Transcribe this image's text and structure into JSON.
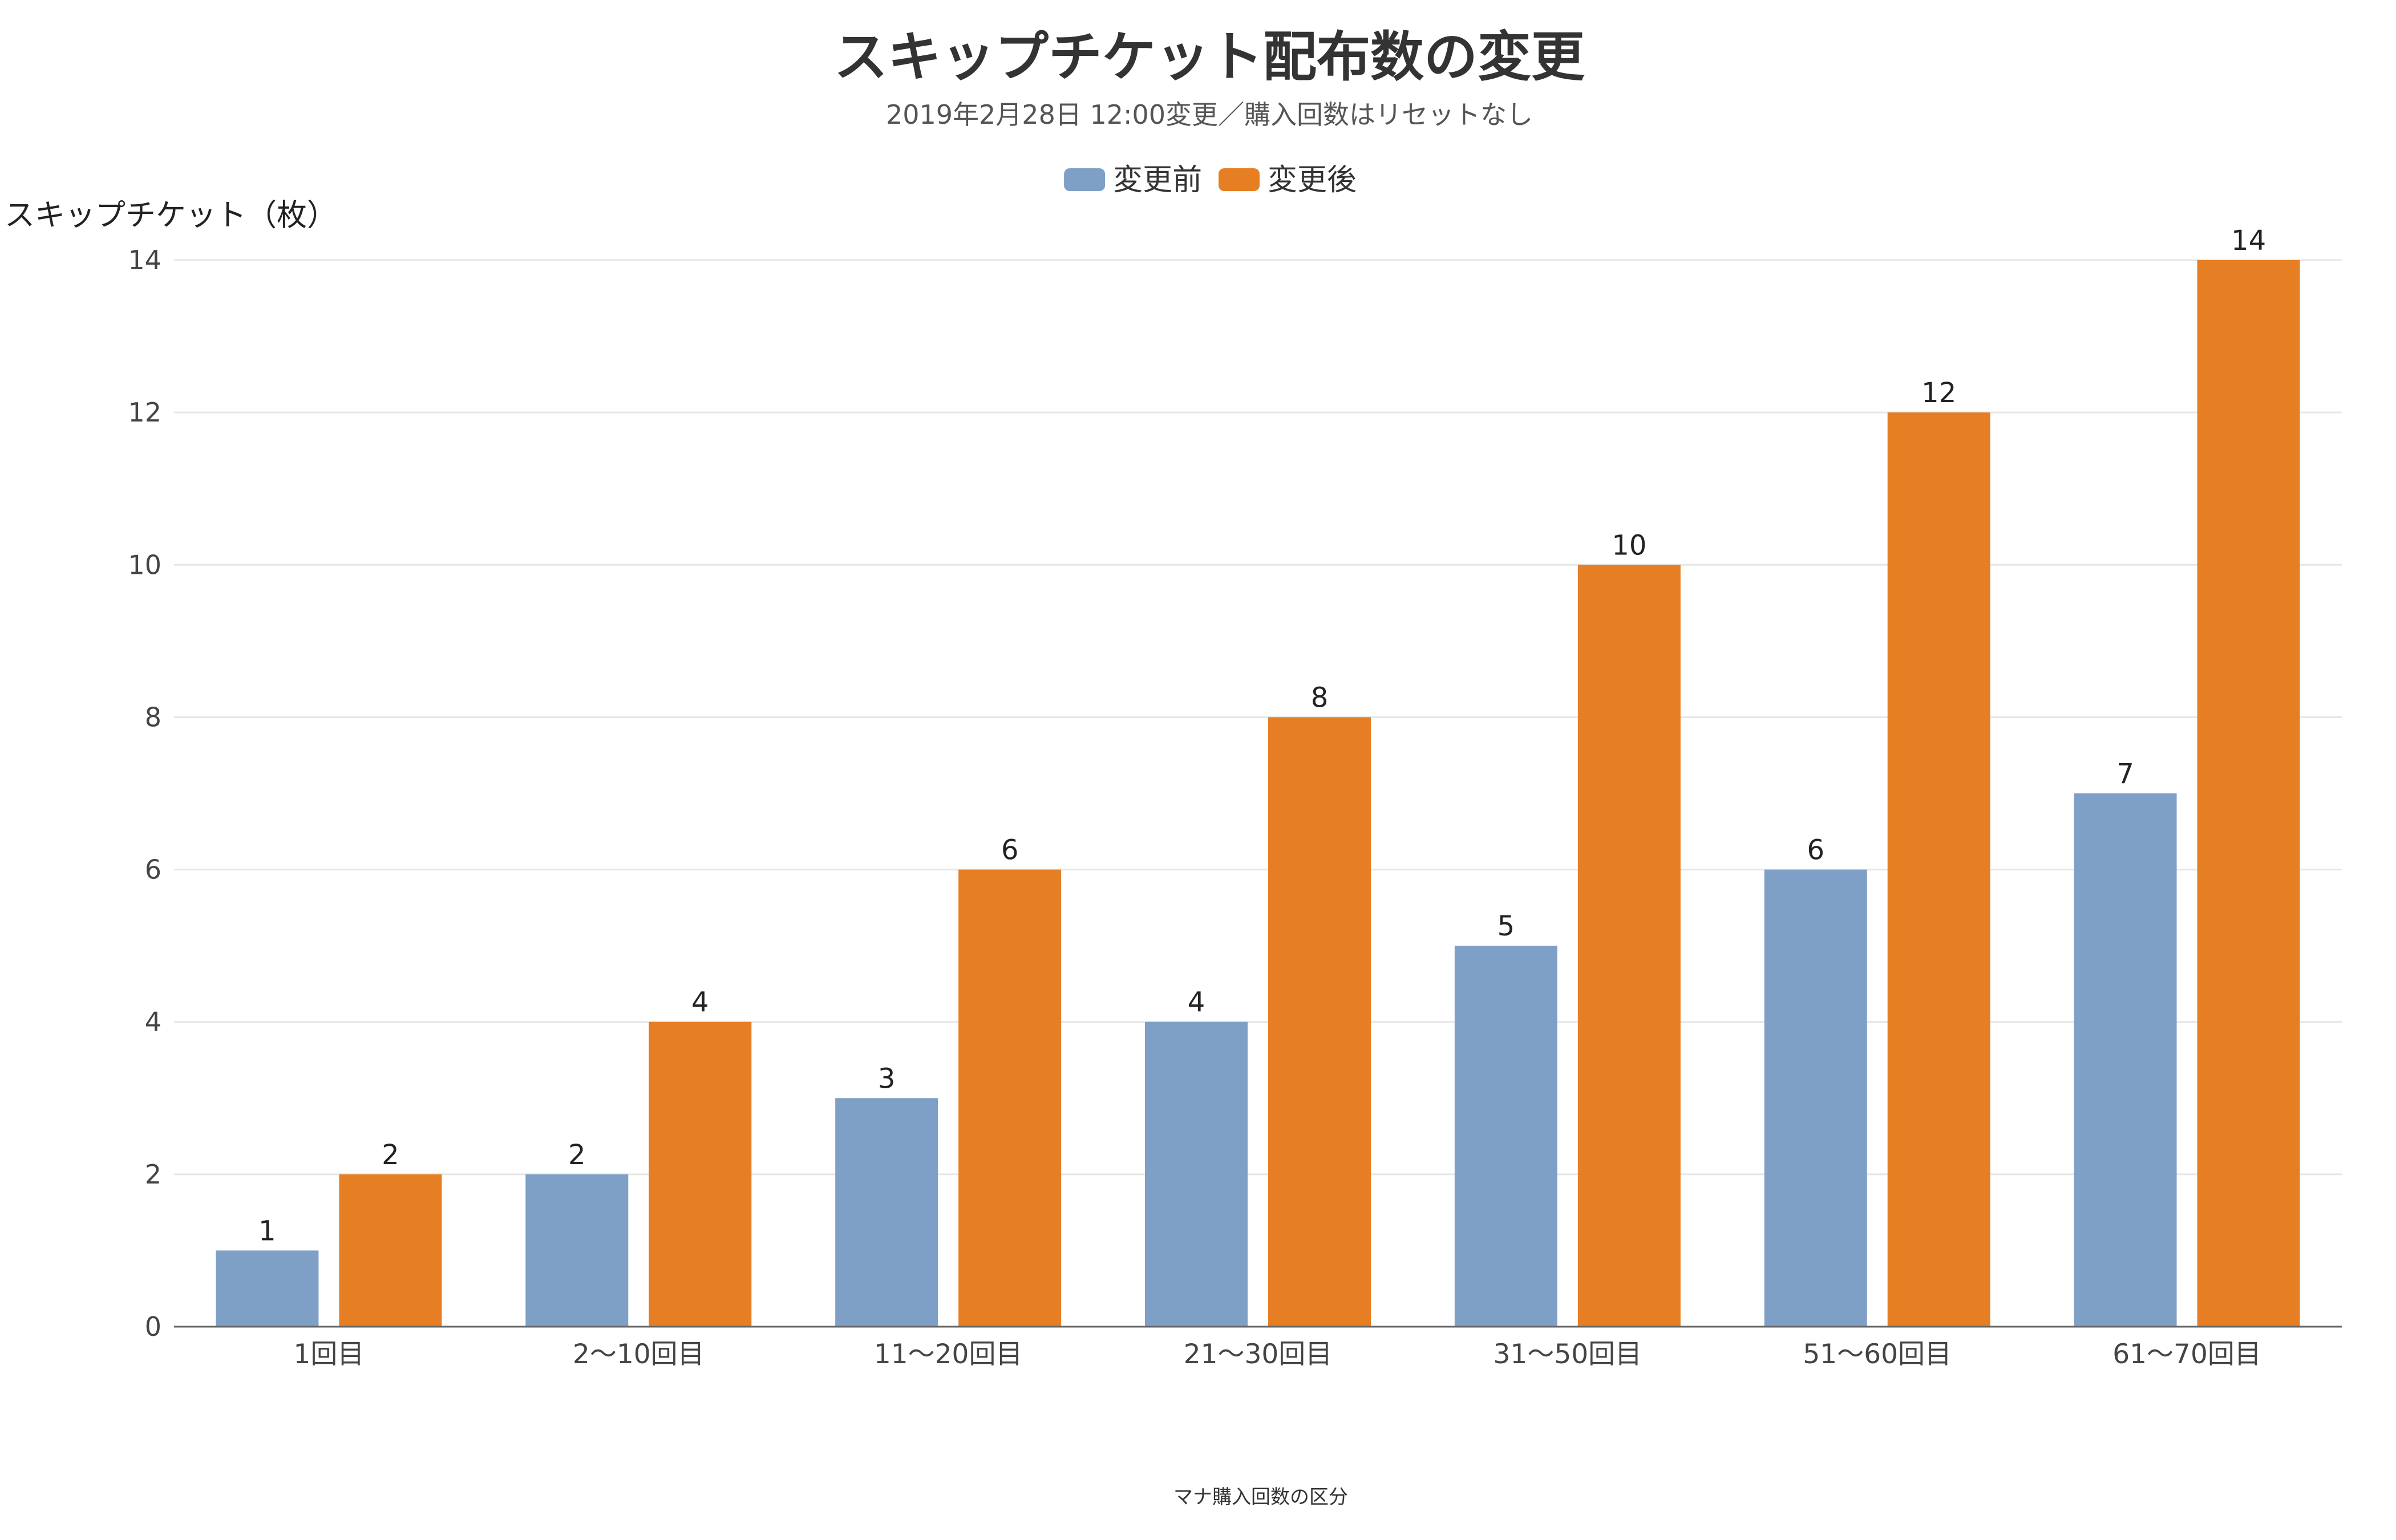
{
  "chart_data": {
    "type": "bar",
    "title": "スキップチケット配布数の変更",
    "subtitle": "2019年2月28日 12:00変更／購入回数はリセットなし",
    "ylabel": "スキップチケット（枚）",
    "xlabel": "マナ購入回数の区分",
    "ylim": [
      0,
      14
    ],
    "yticks": [
      0,
      2,
      4,
      6,
      8,
      10,
      12,
      14
    ],
    "grid": true,
    "legend_position": "top-center",
    "categories": [
      "1回目",
      "2〜10回目",
      "11〜20回目",
      "21〜30回目",
      "31〜50回目",
      "51〜60回目",
      "61〜70回目"
    ],
    "series": [
      {
        "name": "変更前",
        "color": "#7fa0c6",
        "values": [
          1,
          2,
          3,
          4,
          5,
          6,
          7
        ]
      },
      {
        "name": "変更後",
        "color": "#e67f23",
        "values": [
          2,
          4,
          6,
          8,
          10,
          12,
          14
        ]
      }
    ]
  }
}
